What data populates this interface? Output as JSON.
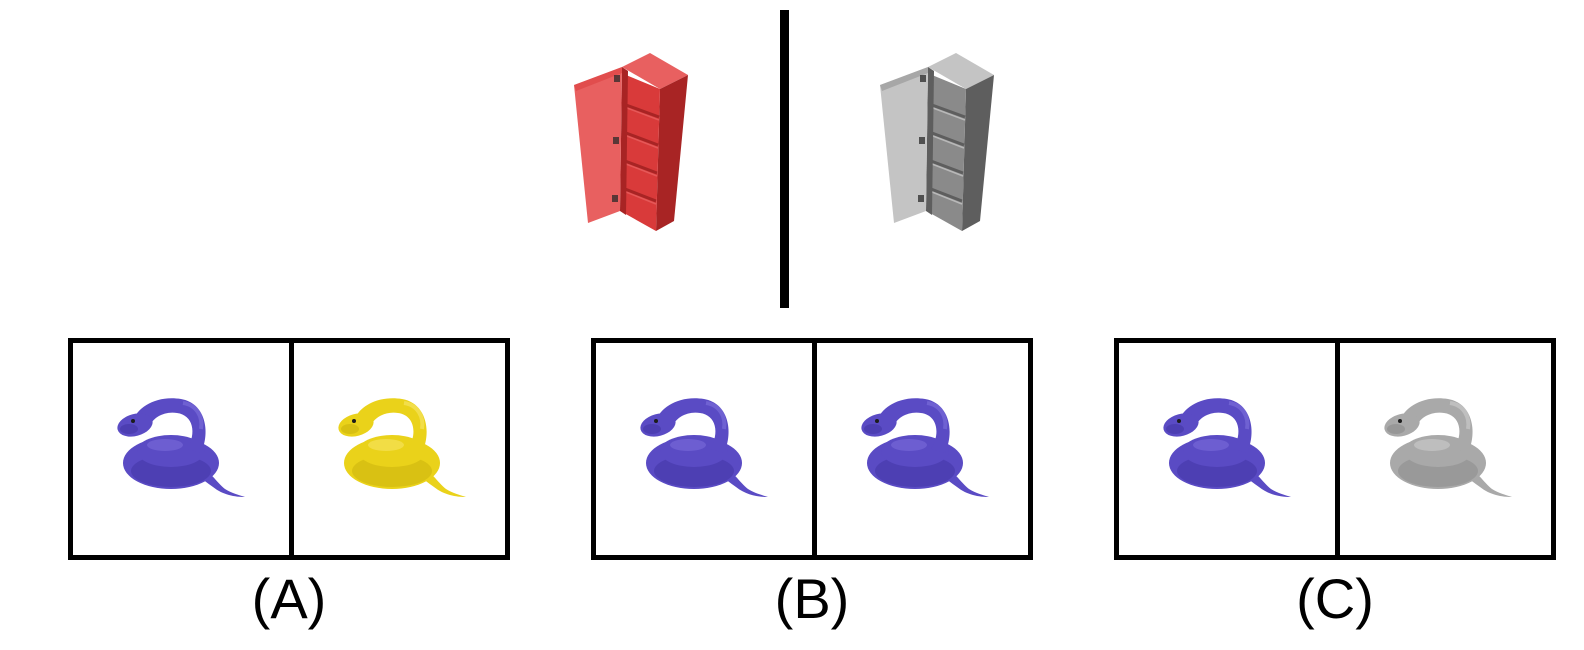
{
  "example": {
    "left_object": {
      "name": "cabinet",
      "color": "#d93a3a",
      "shade": "#a82424",
      "light": "#e86060"
    },
    "right_object": {
      "name": "cabinet",
      "color": "#8a8a8a",
      "shade": "#5e5e5e",
      "light": "#c4c4c4"
    }
  },
  "options": [
    {
      "label": "(A)",
      "left": {
        "name": "snake",
        "color": "#5a4bc4",
        "shade": "#3e31a0",
        "light": "#7d70dc"
      },
      "right": {
        "name": "snake",
        "color": "#ead21a",
        "shade": "#c6ad0a",
        "light": "#f7e66a"
      }
    },
    {
      "label": "(B)",
      "left": {
        "name": "snake",
        "color": "#5a4bc4",
        "shade": "#3e31a0",
        "light": "#7d70dc"
      },
      "right": {
        "name": "snake",
        "color": "#5a4bc4",
        "shade": "#3e31a0",
        "light": "#7d70dc"
      }
    },
    {
      "label": "(C)",
      "left": {
        "name": "snake",
        "color": "#5a4bc4",
        "shade": "#3e31a0",
        "light": "#7d70dc"
      },
      "right": {
        "name": "snake",
        "color": "#a9a9a9",
        "shade": "#858585",
        "light": "#cfcfcf"
      }
    }
  ]
}
